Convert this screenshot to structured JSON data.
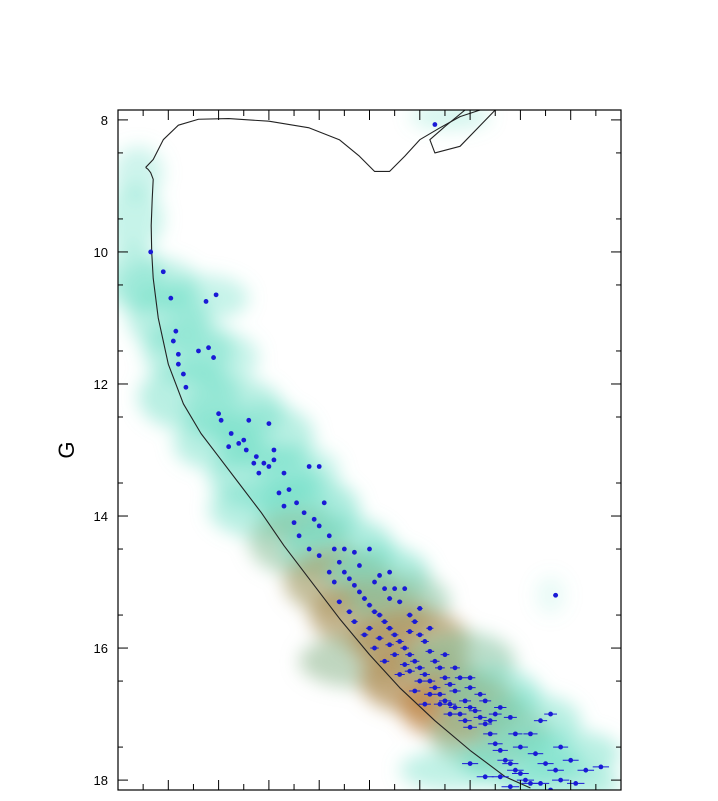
{
  "chart_data": {
    "type": "scatter",
    "ylabel": "G",
    "y_inverted": true,
    "ylim": [
      7.85,
      18.15
    ],
    "xlim": [
      0,
      1
    ],
    "y_ticks": [
      8,
      10,
      12,
      14,
      16,
      18
    ],
    "y_tick_labels": [
      "8",
      "10",
      "12",
      "14",
      "16",
      "18"
    ],
    "x_ticks": [
      0.05,
      0.1,
      0.15,
      0.2,
      0.25,
      0.3,
      0.35,
      0.4,
      0.45,
      0.5,
      0.55,
      0.6,
      0.65,
      0.7,
      0.75,
      0.8,
      0.85,
      0.9,
      0.95
    ],
    "colors": {
      "points": "#1a1ad6",
      "isochrone": "#222222",
      "density_low": "#74e0c8",
      "density_high": "#e2641a",
      "frame": "#000000"
    },
    "isochrone": [
      [
        0.055,
        8.72
      ],
      [
        0.06,
        8.75
      ],
      [
        0.065,
        8.8
      ],
      [
        0.07,
        8.9
      ],
      [
        0.068,
        9.2
      ],
      [
        0.066,
        9.6
      ],
      [
        0.067,
        10.0
      ],
      [
        0.07,
        10.4
      ],
      [
        0.08,
        11.0
      ],
      [
        0.1,
        11.7
      ],
      [
        0.13,
        12.3
      ],
      [
        0.165,
        12.75
      ],
      [
        0.2,
        13.1
      ],
      [
        0.24,
        13.5
      ],
      [
        0.285,
        13.95
      ],
      [
        0.33,
        14.45
      ],
      [
        0.385,
        15.0
      ],
      [
        0.44,
        15.55
      ],
      [
        0.5,
        16.1
      ],
      [
        0.56,
        16.6
      ],
      [
        0.63,
        17.1
      ],
      [
        0.7,
        17.55
      ],
      [
        0.77,
        17.95
      ],
      [
        0.82,
        18.12
      ]
    ],
    "isochrone_upper": [
      [
        0.055,
        8.72
      ],
      [
        0.07,
        8.6
      ],
      [
        0.09,
        8.3
      ],
      [
        0.12,
        8.08
      ],
      [
        0.16,
        7.99
      ],
      [
        0.22,
        7.98
      ],
      [
        0.3,
        8.02
      ],
      [
        0.38,
        8.12
      ],
      [
        0.44,
        8.3
      ],
      [
        0.48,
        8.55
      ],
      [
        0.51,
        8.78
      ],
      [
        0.54,
        8.78
      ],
      [
        0.57,
        8.55
      ],
      [
        0.6,
        8.3
      ],
      [
        0.64,
        8.12
      ],
      [
        0.68,
        7.95
      ],
      [
        0.72,
        7.85
      ]
    ],
    "isochrone_hook": [
      [
        0.69,
        7.85
      ],
      [
        0.65,
        8.1
      ],
      [
        0.62,
        8.3
      ],
      [
        0.63,
        8.5
      ],
      [
        0.68,
        8.4
      ],
      [
        0.75,
        7.85
      ]
    ],
    "points": [
      [
        0.065,
        10.0
      ],
      [
        0.09,
        10.3
      ],
      [
        0.105,
        10.7
      ],
      [
        0.115,
        11.2
      ],
      [
        0.11,
        11.35
      ],
      [
        0.12,
        11.55
      ],
      [
        0.12,
        11.7
      ],
      [
        0.13,
        11.85
      ],
      [
        0.135,
        12.05
      ],
      [
        0.16,
        11.5
      ],
      [
        0.18,
        11.45
      ],
      [
        0.19,
        11.6
      ],
      [
        0.175,
        10.75
      ],
      [
        0.195,
        10.65
      ],
      [
        0.2,
        12.45
      ],
      [
        0.205,
        12.55
      ],
      [
        0.225,
        12.75
      ],
      [
        0.24,
        12.9
      ],
      [
        0.25,
        12.85
      ],
      [
        0.255,
        13.0
      ],
      [
        0.26,
        12.55
      ],
      [
        0.275,
        13.1
      ],
      [
        0.29,
        13.2
      ],
      [
        0.3,
        13.25
      ],
      [
        0.31,
        13.15
      ],
      [
        0.3,
        12.6
      ],
      [
        0.31,
        13.0
      ],
      [
        0.33,
        13.35
      ],
      [
        0.34,
        13.6
      ],
      [
        0.355,
        13.8
      ],
      [
        0.37,
        13.95
      ],
      [
        0.39,
        14.05
      ],
      [
        0.38,
        13.25
      ],
      [
        0.4,
        13.25
      ],
      [
        0.4,
        14.15
      ],
      [
        0.41,
        13.8
      ],
      [
        0.42,
        14.3
      ],
      [
        0.43,
        14.5
      ],
      [
        0.44,
        14.7
      ],
      [
        0.45,
        14.85
      ],
      [
        0.46,
        14.95
      ],
      [
        0.47,
        15.05
      ],
      [
        0.48,
        15.15
      ],
      [
        0.49,
        15.25
      ],
      [
        0.5,
        15.35
      ],
      [
        0.51,
        15.45
      ],
      [
        0.52,
        15.5
      ],
      [
        0.53,
        15.6
      ],
      [
        0.54,
        15.7
      ],
      [
        0.55,
        15.8
      ],
      [
        0.56,
        15.9
      ],
      [
        0.57,
        16.0
      ],
      [
        0.58,
        16.1
      ],
      [
        0.59,
        16.2
      ],
      [
        0.6,
        16.3
      ],
      [
        0.61,
        16.4
      ],
      [
        0.62,
        16.5
      ],
      [
        0.63,
        16.6
      ],
      [
        0.64,
        16.7
      ],
      [
        0.65,
        16.8
      ],
      [
        0.66,
        16.85
      ],
      [
        0.67,
        16.9
      ],
      [
        0.68,
        17.0
      ],
      [
        0.69,
        17.1
      ],
      [
        0.7,
        17.2
      ],
      [
        0.45,
        14.5
      ],
      [
        0.47,
        14.55
      ],
      [
        0.48,
        14.75
      ],
      [
        0.5,
        14.5
      ],
      [
        0.51,
        15.0
      ],
      [
        0.52,
        14.9
      ],
      [
        0.53,
        15.1
      ],
      [
        0.54,
        15.25
      ],
      [
        0.55,
        15.1
      ],
      [
        0.56,
        15.3
      ],
      [
        0.58,
        15.5
      ],
      [
        0.59,
        15.6
      ],
      [
        0.6,
        15.8
      ],
      [
        0.61,
        15.9
      ],
      [
        0.62,
        16.05
      ],
      [
        0.63,
        16.2
      ],
      [
        0.64,
        16.3
      ],
      [
        0.65,
        16.45
      ],
      [
        0.66,
        16.55
      ],
      [
        0.67,
        16.65
      ],
      [
        0.69,
        16.8
      ],
      [
        0.7,
        16.9
      ],
      [
        0.71,
        16.95
      ],
      [
        0.72,
        17.05
      ],
      [
        0.73,
        17.15
      ],
      [
        0.74,
        17.3
      ],
      [
        0.75,
        17.45
      ],
      [
        0.76,
        17.55
      ],
      [
        0.77,
        17.7
      ],
      [
        0.78,
        17.75
      ],
      [
        0.79,
        17.85
      ],
      [
        0.8,
        17.9
      ],
      [
        0.81,
        18.0
      ],
      [
        0.82,
        18.05
      ],
      [
        0.84,
        18.05
      ],
      [
        0.5,
        15.7
      ],
      [
        0.52,
        15.85
      ],
      [
        0.54,
        15.95
      ],
      [
        0.55,
        16.1
      ],
      [
        0.57,
        16.25
      ],
      [
        0.58,
        16.35
      ],
      [
        0.6,
        16.5
      ],
      [
        0.62,
        16.7
      ],
      [
        0.64,
        16.85
      ],
      [
        0.66,
        17.0
      ],
      [
        0.68,
        16.45
      ],
      [
        0.7,
        16.6
      ],
      [
        0.72,
        16.7
      ],
      [
        0.74,
        17.1
      ],
      [
        0.76,
        16.9
      ],
      [
        0.78,
        17.05
      ],
      [
        0.8,
        17.5
      ],
      [
        0.82,
        17.3
      ],
      [
        0.84,
        17.1
      ],
      [
        0.86,
        17.0
      ],
      [
        0.88,
        17.5
      ],
      [
        0.9,
        17.7
      ],
      [
        0.93,
        17.85
      ],
      [
        0.96,
        17.8
      ],
      [
        0.88,
        18.0
      ],
      [
        0.91,
        18.05
      ],
      [
        0.78,
        18.1
      ],
      [
        0.86,
        18.15
      ],
      [
        0.7,
        17.75
      ],
      [
        0.73,
        17.95
      ],
      [
        0.76,
        17.95
      ],
      [
        0.43,
        15.0
      ],
      [
        0.44,
        15.3
      ],
      [
        0.46,
        15.45
      ],
      [
        0.47,
        15.6
      ],
      [
        0.49,
        15.8
      ],
      [
        0.51,
        16.0
      ],
      [
        0.53,
        16.2
      ],
      [
        0.56,
        16.4
      ],
      [
        0.59,
        16.65
      ],
      [
        0.61,
        16.85
      ],
      [
        0.4,
        14.6
      ],
      [
        0.42,
        14.85
      ],
      [
        0.36,
        14.3
      ],
      [
        0.38,
        14.5
      ],
      [
        0.35,
        14.1
      ],
      [
        0.33,
        13.85
      ],
      [
        0.32,
        13.65
      ],
      [
        0.28,
        13.35
      ],
      [
        0.27,
        13.2
      ],
      [
        0.22,
        12.95
      ],
      [
        0.63,
        8.07
      ],
      [
        0.87,
        15.2
      ],
      [
        0.57,
        15.1
      ],
      [
        0.6,
        15.4
      ],
      [
        0.62,
        15.7
      ],
      [
        0.54,
        14.85
      ],
      [
        0.58,
        15.75
      ],
      [
        0.65,
        16.1
      ],
      [
        0.67,
        16.3
      ],
      [
        0.7,
        16.45
      ],
      [
        0.73,
        16.8
      ],
      [
        0.75,
        17.0
      ],
      [
        0.79,
        17.3
      ],
      [
        0.83,
        17.6
      ],
      [
        0.85,
        17.75
      ],
      [
        0.87,
        17.85
      ]
    ],
    "density_blobs": [
      [
        0.04,
        8.8,
        0.05,
        0.4,
        0.35,
        0
      ],
      [
        0.03,
        9.5,
        0.06,
        0.5,
        0.4,
        0
      ],
      [
        0.03,
        10.4,
        0.06,
        0.5,
        0.45,
        0
      ],
      [
        0.08,
        10.5,
        0.08,
        0.4,
        0.45,
        0
      ],
      [
        0.1,
        11.0,
        0.08,
        0.5,
        0.5,
        0
      ],
      [
        0.17,
        10.7,
        0.09,
        0.35,
        0.4,
        0
      ],
      [
        0.14,
        11.5,
        0.09,
        0.5,
        0.5,
        0
      ],
      [
        0.2,
        11.6,
        0.08,
        0.4,
        0.4,
        0
      ],
      [
        0.14,
        12.2,
        0.1,
        0.5,
        0.5,
        0
      ],
      [
        0.23,
        12.4,
        0.1,
        0.5,
        0.5,
        0
      ],
      [
        0.2,
        12.9,
        0.09,
        0.4,
        0.5,
        0
      ],
      [
        0.29,
        12.8,
        0.1,
        0.5,
        0.5,
        0
      ],
      [
        0.29,
        13.4,
        0.11,
        0.5,
        0.55,
        0
      ],
      [
        0.36,
        13.3,
        0.08,
        0.35,
        0.4,
        0
      ],
      [
        0.3,
        13.9,
        0.12,
        0.45,
        0.5,
        0
      ],
      [
        0.38,
        13.9,
        0.1,
        0.5,
        0.6,
        0
      ],
      [
        0.36,
        14.4,
        0.1,
        0.5,
        0.6,
        0.25
      ],
      [
        0.44,
        14.5,
        0.11,
        0.5,
        0.6,
        0
      ],
      [
        0.44,
        15.0,
        0.11,
        0.5,
        0.7,
        0.5
      ],
      [
        0.52,
        14.9,
        0.1,
        0.45,
        0.6,
        0
      ],
      [
        0.5,
        15.5,
        0.12,
        0.5,
        0.75,
        0.55
      ],
      [
        0.56,
        15.3,
        0.1,
        0.45,
        0.6,
        0.2
      ],
      [
        0.48,
        16.2,
        0.12,
        0.4,
        0.6,
        0.3
      ],
      [
        0.58,
        15.9,
        0.12,
        0.5,
        0.75,
        0.6
      ],
      [
        0.6,
        16.5,
        0.12,
        0.5,
        0.8,
        0.6
      ],
      [
        0.68,
        16.2,
        0.11,
        0.45,
        0.6,
        0.2
      ],
      [
        0.68,
        16.9,
        0.12,
        0.5,
        0.8,
        0.7
      ],
      [
        0.74,
        16.7,
        0.1,
        0.4,
        0.6,
        0
      ],
      [
        0.74,
        17.3,
        0.12,
        0.5,
        0.7,
        0.3
      ],
      [
        0.82,
        17.1,
        0.1,
        0.4,
        0.5,
        0
      ],
      [
        0.8,
        17.7,
        0.12,
        0.4,
        0.6,
        0
      ],
      [
        0.9,
        17.6,
        0.1,
        0.35,
        0.5,
        0
      ],
      [
        0.88,
        18.05,
        0.12,
        0.3,
        0.5,
        0
      ],
      [
        0.66,
        17.85,
        0.1,
        0.3,
        0.45,
        0
      ],
      [
        0.66,
        7.95,
        0.08,
        0.2,
        0.3,
        0
      ],
      [
        0.86,
        15.2,
        0.03,
        0.3,
        0.15,
        0
      ]
    ]
  }
}
